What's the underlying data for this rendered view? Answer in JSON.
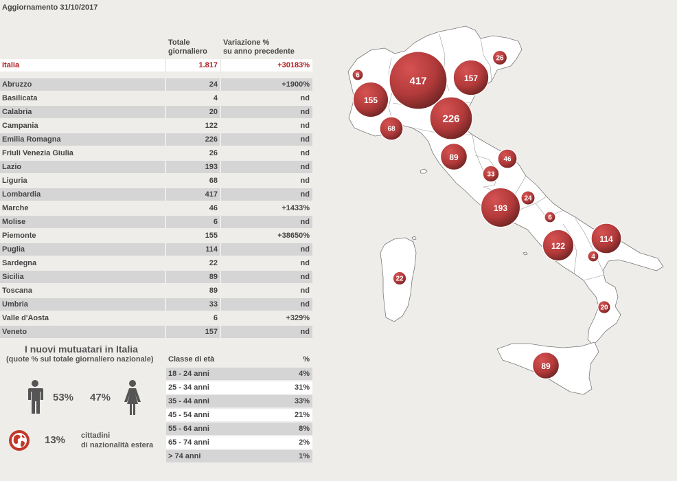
{
  "header": {
    "update_label": "Aggiornamento 31/10/2017"
  },
  "region_table": {
    "col_total": [
      "Totale",
      "giornaliero"
    ],
    "col_variation": [
      "Variazione %",
      "su anno precedente"
    ],
    "italia": {
      "name": "Italia",
      "total": "1.817",
      "variation": "+30183%"
    },
    "rows": [
      {
        "name": "Abruzzo",
        "total": "24",
        "variation": "+1900%"
      },
      {
        "name": "Basilicata",
        "total": "4",
        "variation": "nd"
      },
      {
        "name": "Calabria",
        "total": "20",
        "variation": "nd"
      },
      {
        "name": "Campania",
        "total": "122",
        "variation": "nd"
      },
      {
        "name": "Emilia Romagna",
        "total": "226",
        "variation": "nd"
      },
      {
        "name": "Friuli Venezia Giulia",
        "total": "26",
        "variation": "nd"
      },
      {
        "name": "Lazio",
        "total": "193",
        "variation": "nd"
      },
      {
        "name": "Liguria",
        "total": "68",
        "variation": "nd"
      },
      {
        "name": "Lombardia",
        "total": "417",
        "variation": "nd"
      },
      {
        "name": "Marche",
        "total": "46",
        "variation": "+1433%"
      },
      {
        "name": "Molise",
        "total": "6",
        "variation": "nd"
      },
      {
        "name": "Piemonte",
        "total": "155",
        "variation": "+38650%"
      },
      {
        "name": "Puglia",
        "total": "114",
        "variation": "nd"
      },
      {
        "name": "Sardegna",
        "total": "22",
        "variation": "nd"
      },
      {
        "name": "Sicilia",
        "total": "89",
        "variation": "nd"
      },
      {
        "name": "Toscana",
        "total": "89",
        "variation": "nd"
      },
      {
        "name": "Umbria",
        "total": "33",
        "variation": "nd"
      },
      {
        "name": "Valle d'Aosta",
        "total": "6",
        "variation": "+329%"
      },
      {
        "name": "Veneto",
        "total": "157",
        "variation": "nd"
      }
    ]
  },
  "borrowers": {
    "title": "I nuovi mutuatari in Italia",
    "subtitle": "(quote % sul totale giornaliero nazionale)",
    "male_pct": "53%",
    "female_pct": "47%",
    "foreign_pct": "13%",
    "foreign_label": [
      "cittadini",
      "di nazionalità estera"
    ],
    "icons": {
      "male": "male-person-icon",
      "female": "female-person-icon",
      "globe": "globe-icon"
    },
    "accent_color": "#c0392b"
  },
  "age_table": {
    "col_class": "Classe di età",
    "col_pct": "%",
    "rows": [
      {
        "label": "18 - 24 anni",
        "pct": "4%"
      },
      {
        "label": "25 - 34 anni",
        "pct": "31%"
      },
      {
        "label": "35 - 44 anni",
        "pct": "33%"
      },
      {
        "label": "45 - 54 anni",
        "pct": "21%"
      },
      {
        "label": "55 - 64 anni",
        "pct": "8%"
      },
      {
        "label": "65 - 74 anni",
        "pct": "2%"
      },
      {
        "label": "> 74 anni",
        "pct": "1%"
      }
    ]
  },
  "map": {
    "bubble_color": "#b23a3a",
    "bubbles": [
      {
        "region": "Lombardia",
        "value": 417
      },
      {
        "region": "Emilia Romagna",
        "value": 226
      },
      {
        "region": "Lazio",
        "value": 193
      },
      {
        "region": "Veneto",
        "value": 157
      },
      {
        "region": "Piemonte",
        "value": 155
      },
      {
        "region": "Campania",
        "value": 122
      },
      {
        "region": "Puglia",
        "value": 114
      },
      {
        "region": "Toscana",
        "value": 89
      },
      {
        "region": "Sicilia",
        "value": 89
      },
      {
        "region": "Liguria",
        "value": 68
      },
      {
        "region": "Marche",
        "value": 46
      },
      {
        "region": "Umbria",
        "value": 33
      },
      {
        "region": "Friuli Venezia Giulia",
        "value": 26
      },
      {
        "region": "Abruzzo",
        "value": 24
      },
      {
        "region": "Sardegna",
        "value": 22
      },
      {
        "region": "Calabria",
        "value": 20
      },
      {
        "region": "Valle d'Aosta",
        "value": 6
      },
      {
        "region": "Molise",
        "value": 6
      },
      {
        "region": "Basilicata",
        "value": 4
      }
    ]
  }
}
